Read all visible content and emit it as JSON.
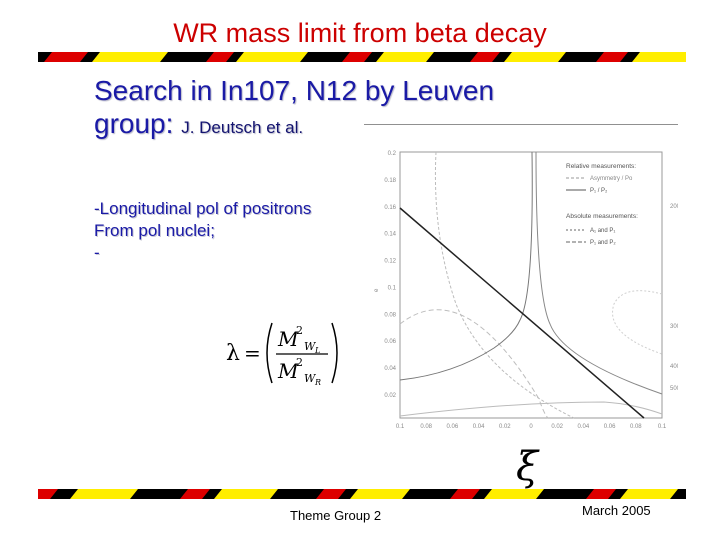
{
  "slide": {
    "title": "WR mass limit from beta decay",
    "subtitle_main": "Search in In107, N12  by Leuven",
    "subtitle_group": "group:",
    "subtitle_authors": "J. Deutsch et al.",
    "bullets": [
      "-Longitudinal pol of positrons",
      "From pol nuclei;",
      "-"
    ],
    "footer_center": "Theme Group 2",
    "footer_right": "March 2005"
  },
  "formula": {
    "lhs": "λ",
    "eq": "=",
    "num_base": "M",
    "num_exp": "2",
    "num_sub": "W",
    "num_subsub": "L",
    "den_base": "M",
    "den_exp": "2",
    "den_sub": "W",
    "den_subsub": "R"
  },
  "plot": {
    "y_ticks": [
      "0.2",
      "0.18",
      "0.16",
      "0.14",
      "0.12",
      "0.1",
      "0.08",
      "0.06",
      "0.04",
      "0.02"
    ],
    "x_ticks": [
      "0.1",
      "0.08",
      "0.06",
      "0.04",
      "0.02",
      "0",
      "0.02",
      "0.04",
      "0.06",
      "0.08",
      "0.1"
    ],
    "right_ticks": [
      "200",
      "300",
      "400",
      "500"
    ],
    "legend_title_1": "Relative measurements:",
    "legend_item_1": "Asymmetry / Po",
    "legend_item_2": "P₁ / P₂",
    "legend_title_2": "Absolute measurements:",
    "legend_item_3": "A₁ and P₁",
    "legend_item_4": "P₁ and P₂",
    "x_symbol": "ξ"
  },
  "colors": {
    "title": "#cc0000",
    "text": "#1a1aa6",
    "band_black": "#000000",
    "band_yellow": "#ffee00",
    "band_red": "#dd0000"
  }
}
